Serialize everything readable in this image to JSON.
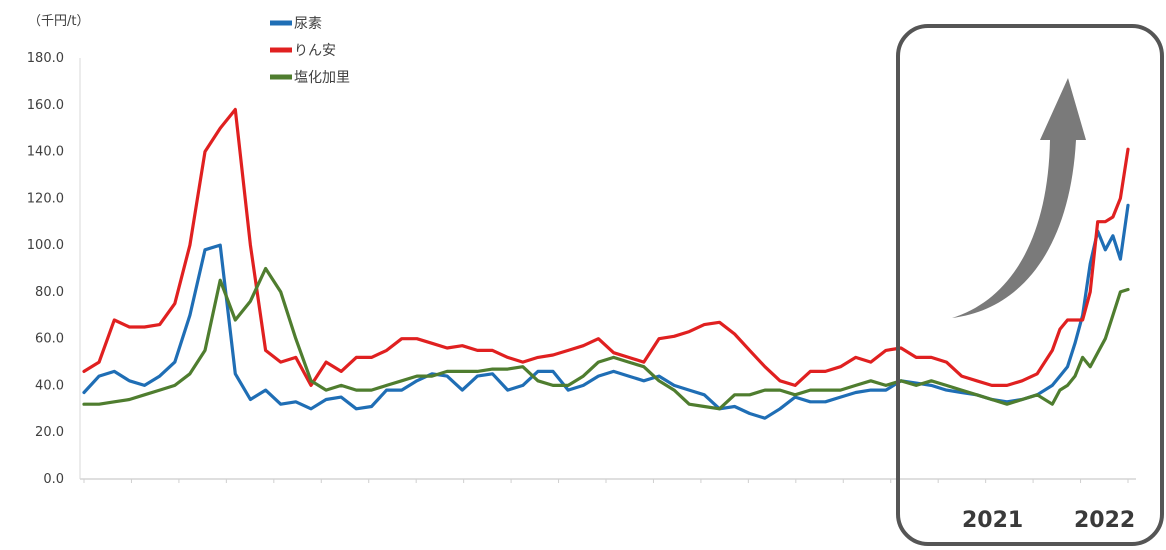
{
  "chart_data": {
    "type": "line",
    "unit_label": "（千円/t）",
    "ylim": [
      0,
      180
    ],
    "yticks": [
      0,
      20,
      40,
      60,
      80,
      100,
      120,
      140,
      160,
      180
    ],
    "ytick_labels": [
      "0.0",
      "20.0",
      "40.0",
      "60.0",
      "80.0",
      "100.0",
      "120.0",
      "140.0",
      "160.0",
      "180.0"
    ],
    "x": [
      0,
      4,
      8,
      12,
      16,
      20,
      24,
      28,
      32,
      36,
      40,
      44,
      48,
      52,
      56,
      60,
      64,
      68,
      72,
      76,
      80,
      84,
      88,
      92,
      96,
      100,
      104,
      108,
      112,
      116,
      120,
      124,
      128,
      132,
      136,
      140,
      144,
      148,
      152,
      156,
      160,
      164,
      168,
      172,
      176,
      180,
      184,
      188,
      192,
      196,
      200,
      204,
      208,
      212,
      216,
      220,
      224,
      228,
      232,
      236,
      240,
      244,
      248,
      252,
      256,
      258,
      260,
      262,
      264,
      266,
      268,
      270,
      272,
      274,
      276
    ],
    "xlim": [
      0,
      276
    ],
    "series": [
      {
        "name": "尿素",
        "color": "#1f6eb5",
        "values": [
          37,
          44,
          46,
          42,
          40,
          44,
          50,
          70,
          98,
          100,
          45,
          34,
          38,
          32,
          33,
          30,
          34,
          35,
          30,
          31,
          38,
          38,
          42,
          45,
          44,
          38,
          44,
          45,
          38,
          40,
          46,
          46,
          38,
          40,
          44,
          46,
          44,
          42,
          44,
          40,
          38,
          36,
          30,
          31,
          28,
          26,
          30,
          35,
          33,
          33,
          35,
          37,
          38,
          38,
          42,
          41,
          40,
          38,
          37,
          36,
          34,
          33,
          34,
          36,
          40,
          44,
          48,
          58,
          70,
          92,
          106,
          98,
          104,
          94,
          117
        ]
      },
      {
        "name": "りん安",
        "color": "#e02020",
        "values": [
          46,
          50,
          68,
          65,
          65,
          66,
          75,
          100,
          140,
          150,
          158,
          100,
          55,
          50,
          52,
          40,
          50,
          46,
          52,
          52,
          55,
          60,
          60,
          58,
          56,
          57,
          55,
          55,
          52,
          50,
          52,
          53,
          55,
          57,
          60,
          54,
          52,
          50,
          60,
          61,
          63,
          66,
          67,
          62,
          55,
          48,
          42,
          40,
          46,
          46,
          48,
          52,
          50,
          55,
          56,
          52,
          52,
          50,
          44,
          42,
          40,
          40,
          42,
          45,
          55,
          64,
          68,
          68,
          68,
          80,
          110,
          110,
          112,
          120,
          141
        ]
      },
      {
        "name": "塩化加里",
        "color": "#4f7d2f",
        "values": [
          32,
          32,
          33,
          34,
          36,
          38,
          40,
          45,
          55,
          85,
          68,
          76,
          90,
          80,
          60,
          42,
          38,
          40,
          38,
          38,
          40,
          42,
          44,
          44,
          46,
          46,
          46,
          47,
          47,
          48,
          42,
          40,
          40,
          44,
          50,
          52,
          50,
          48,
          42,
          38,
          32,
          31,
          30,
          36,
          36,
          38,
          38,
          36,
          38,
          38,
          38,
          40,
          42,
          40,
          42,
          40,
          42,
          40,
          38,
          36,
          34,
          32,
          34,
          36,
          32,
          38,
          40,
          44,
          52,
          48,
          54,
          60,
          70,
          80,
          81
        ]
      }
    ]
  },
  "legend": [
    {
      "label": "尿素",
      "color": "#1f6eb5"
    },
    {
      "label": "りん安",
      "color": "#e02020"
    },
    {
      "label": "塩化加里",
      "color": "#4f7d2f"
    }
  ],
  "annotation": {
    "years": [
      "2021",
      "2022"
    ],
    "box_color": "#555555",
    "arrow_color": "#7a7a7a"
  }
}
